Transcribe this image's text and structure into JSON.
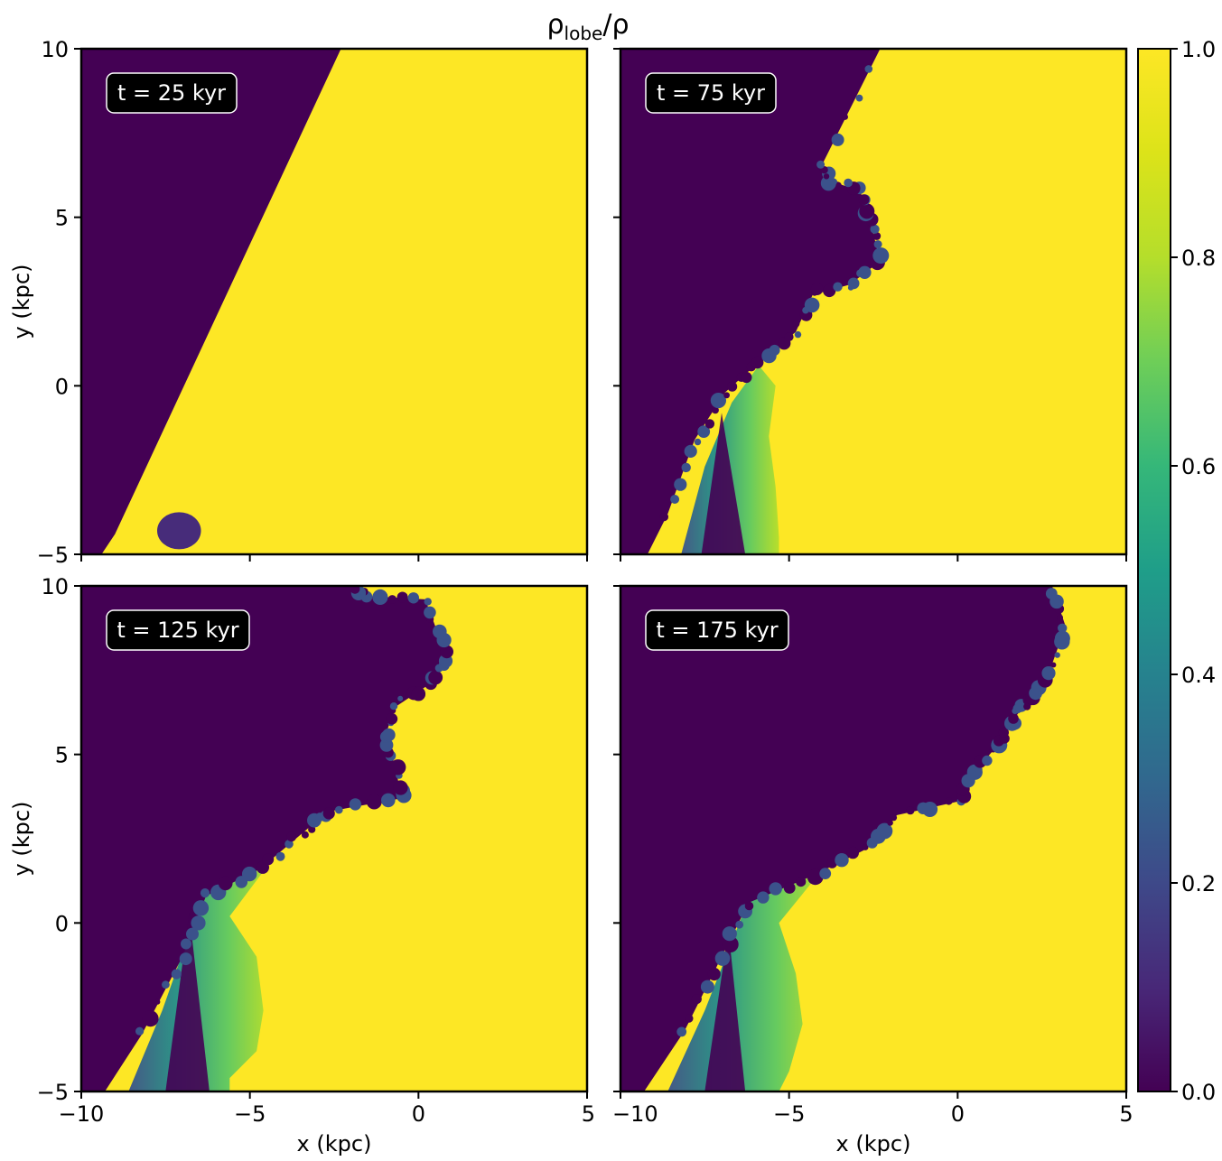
{
  "figure_title": {
    "main_left": "ρ",
    "subscript": "lobe",
    "main_right": "/ρ"
  },
  "colormap": {
    "name": "viridis",
    "low_color": "#440154",
    "high_color": "#fde725"
  },
  "chart_data": {
    "type": "heatmap",
    "title": "ρlobe/ρ",
    "xlabel": "x (kpc)",
    "ylabel": "y (kpc)",
    "xlim": [
      -10,
      5
    ],
    "ylim": [
      -5,
      10
    ],
    "xticks": [
      -10,
      -5,
      0,
      5
    ],
    "yticks": [
      -5,
      0,
      5,
      10
    ],
    "xtick_labels": [
      "−10",
      "−5",
      "0",
      "5"
    ],
    "ytick_labels": [
      "−5",
      "0",
      "5",
      "10"
    ],
    "colorbar": {
      "range": [
        0.0,
        1.0
      ],
      "ticks": [
        0.0,
        0.2,
        0.4,
        0.6,
        0.8,
        1.0
      ],
      "tick_labels": [
        "0.0",
        "0.2",
        "0.4",
        "0.6",
        "0.8",
        "1.0"
      ]
    },
    "panels": [
      {
        "time_label": "t = 25 kyr",
        "interface": [
          [
            -9.4,
            -5
          ],
          [
            -9.0,
            -4.4
          ],
          [
            -2.3,
            10
          ]
        ],
        "interface_rough": false,
        "blobs": [
          {
            "cx": -7.1,
            "cy": -4.3,
            "rx": 0.65,
            "ry": 0.55
          }
        ]
      },
      {
        "time_label": "t = 75 kyr",
        "interface": [
          [
            -9.2,
            -5
          ],
          [
            -8.6,
            -3.8
          ],
          [
            -7.8,
            -1.6
          ],
          [
            -6.9,
            -0.2
          ],
          [
            -5.9,
            0.7
          ],
          [
            -4.8,
            1.6
          ],
          [
            -4.3,
            2.7
          ],
          [
            -3.2,
            3.0
          ],
          [
            -2.3,
            3.7
          ],
          [
            -2.6,
            4.9
          ],
          [
            -2.9,
            5.8
          ],
          [
            -3.9,
            6.1
          ],
          [
            -4.0,
            6.6
          ],
          [
            -2.3,
            10
          ]
        ],
        "interface_rough": true,
        "mixing_band": [
          [
            -8.2,
            -5
          ],
          [
            -7.5,
            -2.4
          ],
          [
            -6.7,
            -0.5
          ],
          [
            -5.9,
            0.6
          ],
          [
            -5.4,
            0.0
          ],
          [
            -5.6,
            -1.5
          ],
          [
            -5.4,
            -3.0
          ],
          [
            -5.3,
            -4.5
          ],
          [
            -5.3,
            -5
          ]
        ],
        "dark_column": [
          [
            -7.6,
            -5
          ],
          [
            -7.0,
            -0.8
          ],
          [
            -6.3,
            -5
          ]
        ]
      },
      {
        "time_label": "t = 125 kyr",
        "interface": [
          [
            -9.3,
            -5
          ],
          [
            -8.2,
            -3.3
          ],
          [
            -7.0,
            -1.0
          ],
          [
            -6.3,
            0.8
          ],
          [
            -4.7,
            1.6
          ],
          [
            -3.4,
            2.7
          ],
          [
            -2.7,
            3.3
          ],
          [
            -0.5,
            3.7
          ],
          [
            -0.7,
            4.7
          ],
          [
            -1.0,
            5.5
          ],
          [
            -0.7,
            6.4
          ],
          [
            0.5,
            7.2
          ],
          [
            0.8,
            8.0
          ],
          [
            0.2,
            9.6
          ],
          [
            -1.5,
            9.7
          ],
          [
            -2.1,
            10
          ]
        ],
        "interface_rough": true,
        "mixing_band": [
          [
            -8.6,
            -5
          ],
          [
            -7.6,
            -2.6
          ],
          [
            -6.4,
            0.8
          ],
          [
            -4.4,
            1.8
          ],
          [
            -5.6,
            0.2
          ],
          [
            -4.8,
            -1.0
          ],
          [
            -4.6,
            -2.6
          ],
          [
            -4.8,
            -3.8
          ],
          [
            -5.6,
            -4.6
          ],
          [
            -5.6,
            -5
          ]
        ],
        "dark_column": [
          [
            -7.5,
            -5
          ],
          [
            -6.8,
            0.3
          ],
          [
            -6.2,
            -5
          ]
        ]
      },
      {
        "time_label": "t = 175 kyr",
        "interface": [
          [
            -9.3,
            -5
          ],
          [
            -8.1,
            -3.2
          ],
          [
            -7.0,
            -1.0
          ],
          [
            -6.2,
            0.6
          ],
          [
            -4.3,
            1.4
          ],
          [
            -2.7,
            2.2
          ],
          [
            -1.8,
            3.2
          ],
          [
            0.0,
            3.6
          ],
          [
            0.6,
            4.6
          ],
          [
            1.3,
            5.4
          ],
          [
            1.7,
            6.1
          ],
          [
            2.1,
            6.6
          ],
          [
            2.7,
            7.4
          ],
          [
            3.2,
            8.8
          ],
          [
            2.8,
            10
          ]
        ],
        "interface_rough": true,
        "mixing_band": [
          [
            -8.6,
            -5
          ],
          [
            -7.5,
            -2.6
          ],
          [
            -6.2,
            0.7
          ],
          [
            -4.0,
            1.6
          ],
          [
            -5.3,
            0.0
          ],
          [
            -4.8,
            -1.5
          ],
          [
            -4.6,
            -3.0
          ],
          [
            -5.0,
            -4.4
          ],
          [
            -5.3,
            -5
          ]
        ],
        "dark_column": [
          [
            -7.5,
            -5
          ],
          [
            -6.8,
            -0.2
          ],
          [
            -6.3,
            -5
          ]
        ]
      }
    ]
  }
}
